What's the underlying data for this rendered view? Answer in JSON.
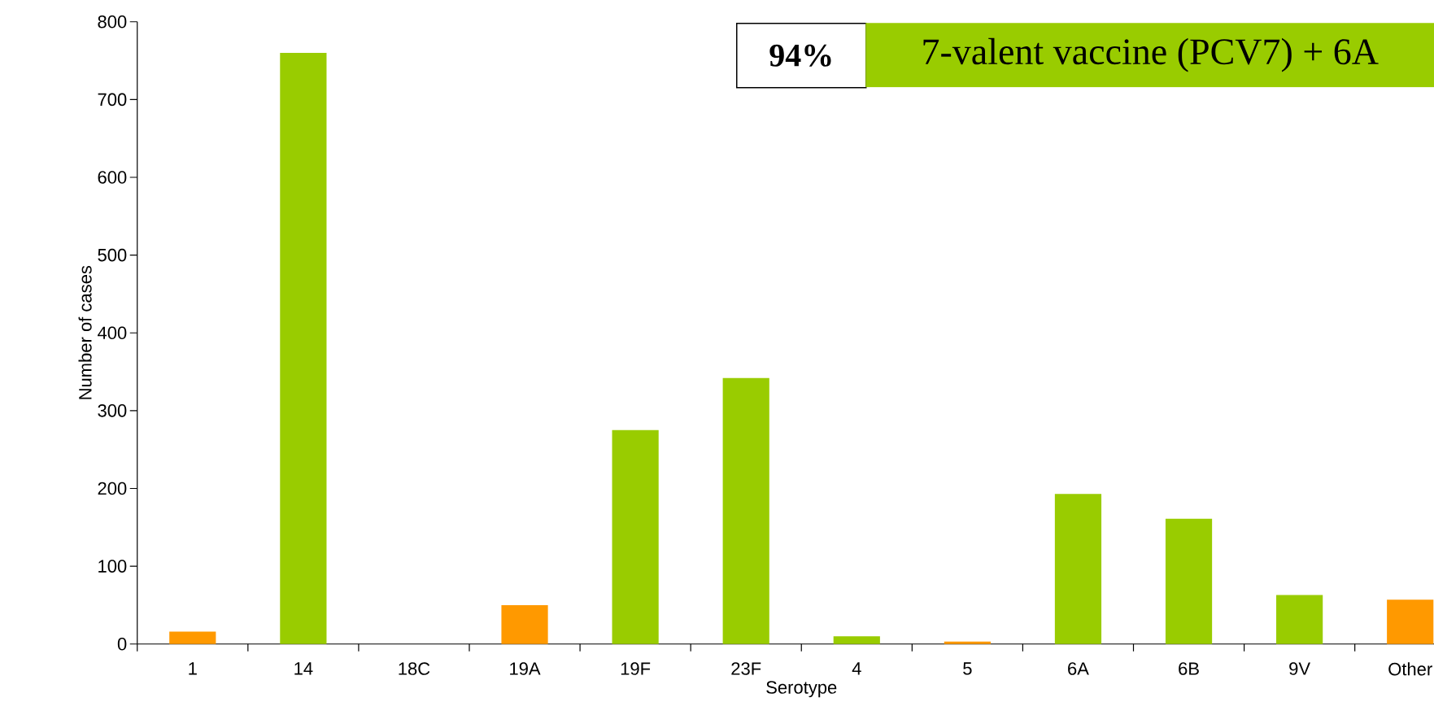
{
  "chart_data": {
    "type": "bar",
    "xlabel": "Serotype",
    "ylabel": "Number of cases",
    "categories": [
      "1",
      "14",
      "18C",
      "19A",
      "19F",
      "23F",
      "4",
      "5",
      "6A",
      "6B",
      "9V",
      "Other"
    ],
    "values": [
      16,
      760,
      0,
      50,
      275,
      342,
      10,
      3,
      193,
      161,
      63,
      57
    ],
    "colors": [
      "#ff9900",
      "#99cc00",
      "#99cc00",
      "#ff9900",
      "#99cc00",
      "#99cc00",
      "#99cc00",
      "#ff9900",
      "#99cc00",
      "#99cc00",
      "#99cc00",
      "#ff9900"
    ],
    "ylim": [
      0,
      800
    ],
    "yticks": [
      0,
      100,
      200,
      300,
      400,
      500,
      600,
      700,
      800
    ],
    "annotations": [
      "94%",
      "7-valent vaccine (PCV7) + 6A"
    ]
  }
}
